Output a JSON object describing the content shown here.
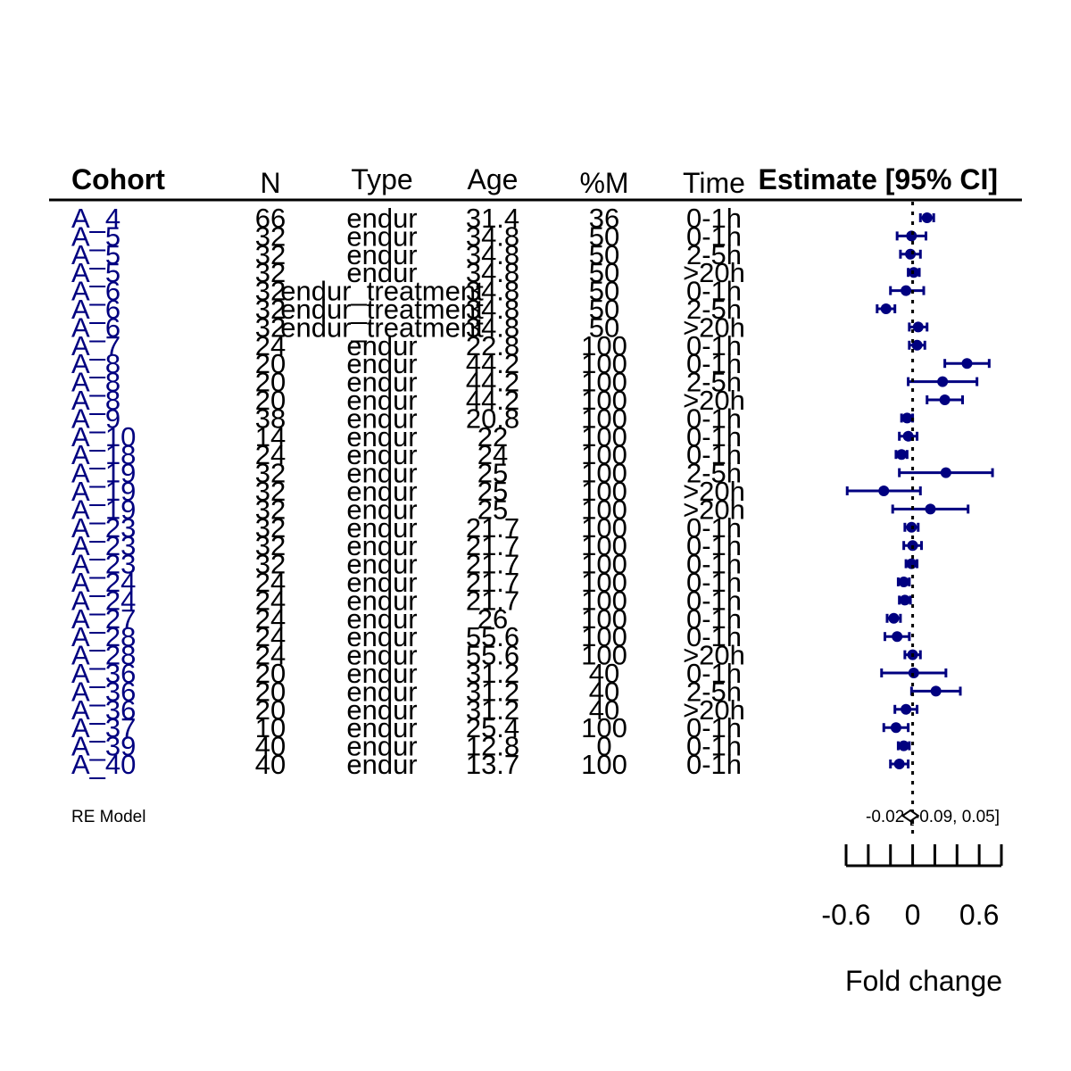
{
  "headers": {
    "cohort": "Cohort",
    "n": "N",
    "type": "Type",
    "age": "Age",
    "pct_m": "%M",
    "time": "Time",
    "estimate": "Estimate [95% CI]"
  },
  "colors": {
    "point": "#000080",
    "cohort_text": "#000080",
    "text": "#000000"
  },
  "chart_data": {
    "type": "forest",
    "xlabel": "Fold change",
    "xticks": [
      "-0.6",
      "0",
      "0.6"
    ],
    "xlim": [
      -0.6,
      0.8
    ],
    "reference_line": 0,
    "rows": [
      {
        "cohort": "A_4",
        "n": "66",
        "type": "endur",
        "age": "31.4",
        "pct_m": "36",
        "time": "0-1h",
        "est": 0.13,
        "lo": 0.07,
        "hi": 0.19
      },
      {
        "cohort": "A_5",
        "n": "32",
        "type": "endur",
        "age": "34.8",
        "pct_m": "50",
        "time": "0-1h",
        "est": -0.01,
        "lo": -0.14,
        "hi": 0.12
      },
      {
        "cohort": "A_5",
        "n": "32",
        "type": "endur",
        "age": "34.8",
        "pct_m": "50",
        "time": "2-5h",
        "est": -0.02,
        "lo": -0.11,
        "hi": 0.07
      },
      {
        "cohort": "A_5",
        "n": "32",
        "type": "endur",
        "age": "34.8",
        "pct_m": "50",
        "time": ">20h",
        "est": 0.01,
        "lo": -0.04,
        "hi": 0.06
      },
      {
        "cohort": "A_6",
        "n": "32",
        "type": "endur_treatment",
        "age": "34.8",
        "pct_m": "50",
        "time": "0-1h",
        "est": -0.06,
        "lo": -0.2,
        "hi": 0.1
      },
      {
        "cohort": "A_6",
        "n": "32",
        "type": "endur_treatment",
        "age": "34.8",
        "pct_m": "50",
        "time": "2-5h",
        "est": -0.24,
        "lo": -0.32,
        "hi": -0.16
      },
      {
        "cohort": "A_6",
        "n": "32",
        "type": "endur_treatment",
        "age": "34.8",
        "pct_m": "50",
        "time": ">20h",
        "est": 0.05,
        "lo": -0.03,
        "hi": 0.13
      },
      {
        "cohort": "A_7",
        "n": "24",
        "type": "endur",
        "age": "22.8",
        "pct_m": "100",
        "time": "0-1h",
        "est": 0.04,
        "lo": -0.03,
        "hi": 0.11
      },
      {
        "cohort": "A_8",
        "n": "20",
        "type": "endur",
        "age": "44.2",
        "pct_m": "100",
        "time": "0-1h",
        "est": 0.49,
        "lo": 0.29,
        "hi": 0.69
      },
      {
        "cohort": "A_8",
        "n": "20",
        "type": "endur",
        "age": "44.2",
        "pct_m": "100",
        "time": "2-5h",
        "est": 0.27,
        "lo": -0.04,
        "hi": 0.58
      },
      {
        "cohort": "A_8",
        "n": "20",
        "type": "endur",
        "age": "44.2",
        "pct_m": "100",
        "time": ">20h",
        "est": 0.29,
        "lo": 0.13,
        "hi": 0.45
      },
      {
        "cohort": "A_9",
        "n": "38",
        "type": "endur",
        "age": "20.8",
        "pct_m": "100",
        "time": "0-1h",
        "est": -0.05,
        "lo": -0.1,
        "hi": 0.0
      },
      {
        "cohort": "A_10",
        "n": "14",
        "type": "endur",
        "age": "22",
        "pct_m": "100",
        "time": "0-1h",
        "est": -0.04,
        "lo": -0.12,
        "hi": 0.04
      },
      {
        "cohort": "A_18",
        "n": "24",
        "type": "endur",
        "age": "24",
        "pct_m": "100",
        "time": "0-1h",
        "est": -0.1,
        "lo": -0.15,
        "hi": -0.05
      },
      {
        "cohort": "A_19",
        "n": "32",
        "type": "endur",
        "age": "25",
        "pct_m": "100",
        "time": "2-5h",
        "est": 0.3,
        "lo": -0.12,
        "hi": 0.72
      },
      {
        "cohort": "A_19",
        "n": "32",
        "type": "endur",
        "age": "25",
        "pct_m": "100",
        "time": ">20h",
        "est": -0.26,
        "lo": -0.59,
        "hi": 0.07
      },
      {
        "cohort": "A_19",
        "n": "32",
        "type": "endur",
        "age": "25",
        "pct_m": "100",
        "time": ">20h",
        "est": 0.16,
        "lo": -0.18,
        "hi": 0.5
      },
      {
        "cohort": "A_23",
        "n": "32",
        "type": "endur",
        "age": "21.7",
        "pct_m": "100",
        "time": "0-1h",
        "est": -0.01,
        "lo": -0.07,
        "hi": 0.05
      },
      {
        "cohort": "A_23",
        "n": "32",
        "type": "endur",
        "age": "21.7",
        "pct_m": "100",
        "time": "0-1h",
        "est": 0.0,
        "lo": -0.08,
        "hi": 0.08
      },
      {
        "cohort": "A_23",
        "n": "32",
        "type": "endur",
        "age": "21.7",
        "pct_m": "100",
        "time": "0-1h",
        "est": -0.01,
        "lo": -0.06,
        "hi": 0.04
      },
      {
        "cohort": "A_24",
        "n": "24",
        "type": "endur",
        "age": "21.7",
        "pct_m": "100",
        "time": "0-1h",
        "est": -0.08,
        "lo": -0.13,
        "hi": -0.03
      },
      {
        "cohort": "A_24",
        "n": "24",
        "type": "endur",
        "age": "21.7",
        "pct_m": "100",
        "time": "0-1h",
        "est": -0.07,
        "lo": -0.12,
        "hi": -0.02
      },
      {
        "cohort": "A_27",
        "n": "24",
        "type": "endur",
        "age": "26",
        "pct_m": "100",
        "time": "0-1h",
        "est": -0.17,
        "lo": -0.23,
        "hi": -0.11
      },
      {
        "cohort": "A_28",
        "n": "24",
        "type": "endur",
        "age": "55.6",
        "pct_m": "100",
        "time": "0-1h",
        "est": -0.14,
        "lo": -0.25,
        "hi": -0.03
      },
      {
        "cohort": "A_28",
        "n": "24",
        "type": "endur",
        "age": "55.6",
        "pct_m": "100",
        "time": ">20h",
        "est": 0.0,
        "lo": -0.07,
        "hi": 0.07
      },
      {
        "cohort": "A_36",
        "n": "20",
        "type": "endur",
        "age": "31.2",
        "pct_m": "40",
        "time": "0-1h",
        "est": 0.01,
        "lo": -0.28,
        "hi": 0.3
      },
      {
        "cohort": "A_36",
        "n": "20",
        "type": "endur",
        "age": "31.2",
        "pct_m": "40",
        "time": "2-5h",
        "est": 0.21,
        "lo": -0.01,
        "hi": 0.43
      },
      {
        "cohort": "A_36",
        "n": "20",
        "type": "endur",
        "age": "31.2",
        "pct_m": "40",
        "time": ">20h",
        "est": -0.06,
        "lo": -0.16,
        "hi": 0.04
      },
      {
        "cohort": "A_37",
        "n": "10",
        "type": "endur",
        "age": "25.4",
        "pct_m": "100",
        "time": "0-1h",
        "est": -0.15,
        "lo": -0.26,
        "hi": -0.04
      },
      {
        "cohort": "A_39",
        "n": "40",
        "type": "endur",
        "age": "12.8",
        "pct_m": "0",
        "time": "0-1h",
        "est": -0.08,
        "lo": -0.13,
        "hi": -0.03
      },
      {
        "cohort": "A_40",
        "n": "40",
        "type": "endur",
        "age": "13.7",
        "pct_m": "100",
        "time": "0-1h",
        "est": -0.12,
        "lo": -0.2,
        "hi": -0.04
      }
    ],
    "summary": {
      "label": "RE Model",
      "est": -0.02,
      "lo": -0.09,
      "hi": 0.05,
      "text": "-0.02 [-0.09, 0.05]"
    }
  }
}
